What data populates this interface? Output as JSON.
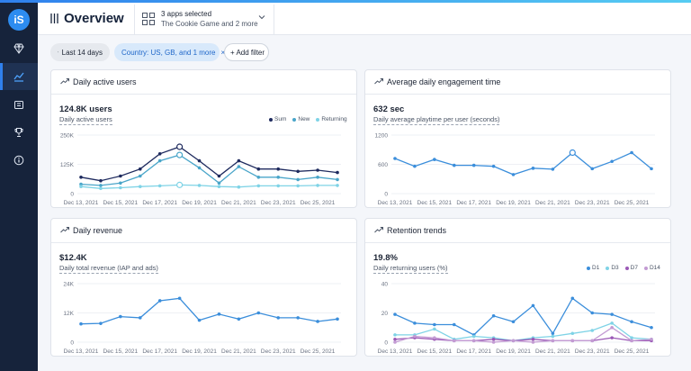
{
  "app": {
    "logo_text": "iS",
    "title": "Overview",
    "app_selector": {
      "line1": "3 apps selected",
      "line2": "The Cookie Game and 2 more"
    },
    "sidebar": [
      {
        "icon": "diamond-icon"
      },
      {
        "icon": "analytics-icon",
        "active": true
      },
      {
        "icon": "calendar-icon"
      },
      {
        "icon": "trophy-icon"
      },
      {
        "icon": "info-icon"
      }
    ]
  },
  "filters": {
    "date": "Last 14 days",
    "country": "Country: US, GB, and 1 more",
    "add": "+ Add filter"
  },
  "cards": [
    {
      "title": "Daily active users",
      "value": "124.8K users",
      "subtitle": "Daily active users",
      "chart_data": {
        "type": "line",
        "x": [
          "Dec 13, 2021",
          "Dec 14, 2021",
          "Dec 15, 2021",
          "Dec 16, 2021",
          "Dec 17, 2021",
          "Dec 18, 2021",
          "Dec 19, 2021",
          "Dec 20, 2021",
          "Dec 21, 2021",
          "Dec 22, 2021",
          "Dec 23, 2021",
          "Dec 24, 2021",
          "Dec 25, 2021",
          "Dec 26, 2021"
        ],
        "xticks": [
          "Dec 13, 2021",
          "Dec 15, 2021",
          "Dec 17, 2021",
          "Dec 19, 2021",
          "Dec 21, 2021",
          "Dec 23, 2021",
          "Dec 25, 2021"
        ],
        "yticks": [
          "0",
          "125K",
          "250K"
        ],
        "ylim": [
          0,
          250000
        ],
        "legend_position": "top-right",
        "series": [
          {
            "name": "Sum",
            "color": "#1e2a5e",
            "values": [
              70000,
              55000,
              75000,
              105000,
              170000,
              200000,
              140000,
              75000,
              140000,
              105000,
              105000,
              95000,
              100000,
              90000
            ],
            "highlight": 5
          },
          {
            "name": "New",
            "color": "#49a5c9",
            "values": [
              40000,
              35000,
              45000,
              75000,
              140000,
              165000,
              110000,
              45000,
              115000,
              70000,
              70000,
              60000,
              70000,
              60000
            ],
            "highlight": 5
          },
          {
            "name": "Returning",
            "color": "#7fd3e6",
            "values": [
              30000,
              22000,
              25000,
              30000,
              33000,
              37000,
              35000,
              30000,
              28000,
              33000,
              33000,
              33000,
              35000,
              35000
            ],
            "highlight": 5
          }
        ]
      }
    },
    {
      "title": "Average daily engagement time",
      "value": "632 sec",
      "subtitle": "Daily average playtime per user (seconds)",
      "chart_data": {
        "type": "line",
        "x": [
          "Dec 13, 2021",
          "Dec 14, 2021",
          "Dec 15, 2021",
          "Dec 16, 2021",
          "Dec 17, 2021",
          "Dec 18, 2021",
          "Dec 19, 2021",
          "Dec 20, 2021",
          "Dec 21, 2021",
          "Dec 22, 2021",
          "Dec 23, 2021",
          "Dec 24, 2021",
          "Dec 25, 2021",
          "Dec 26, 2021"
        ],
        "xticks": [
          "Dec 13, 2021",
          "Dec 15, 2021",
          "Dec 17, 2021",
          "Dec 19, 2021",
          "Dec 21, 2021",
          "Dec 23, 2021",
          "Dec 25, 2021"
        ],
        "yticks": [
          "0",
          "600",
          "1200"
        ],
        "ylim": [
          0,
          1200
        ],
        "series": [
          {
            "name": "",
            "color": "#3b8edb",
            "values": [
              720,
              560,
              700,
              580,
              580,
              560,
              390,
              520,
              500,
              840,
              510,
              660,
              840,
              510
            ],
            "highlight": 9
          }
        ]
      }
    },
    {
      "title": "Daily revenue",
      "value": "$12.4K",
      "subtitle": "Daily total revenue (IAP and ads)",
      "chart_data": {
        "type": "line",
        "x": [
          "Dec 13, 2021",
          "Dec 14, 2021",
          "Dec 15, 2021",
          "Dec 16, 2021",
          "Dec 17, 2021",
          "Dec 18, 2021",
          "Dec 19, 2021",
          "Dec 20, 2021",
          "Dec 21, 2021",
          "Dec 22, 2021",
          "Dec 23, 2021",
          "Dec 24, 2021",
          "Dec 25, 2021",
          "Dec 26, 2021"
        ],
        "xticks": [
          "Dec 13, 2021",
          "Dec 15, 2021",
          "Dec 17, 2021",
          "Dec 19, 2021",
          "Dec 21, 2021",
          "Dec 23, 2021",
          "Dec 25, 2021"
        ],
        "yticks": [
          "0",
          "12K",
          "24K"
        ],
        "ylim": [
          0,
          24000
        ],
        "series": [
          {
            "name": "",
            "color": "#3b8edb",
            "values": [
              7500,
              7700,
              10500,
              10000,
              17000,
              18000,
              9000,
              11500,
              9500,
              12000,
              10000,
              10000,
              8500,
              9500
            ]
          }
        ]
      }
    },
    {
      "title": "Retention trends",
      "value": "19.8%",
      "subtitle": "Daily returning users (%)",
      "chart_data": {
        "type": "line",
        "x": [
          "Dec 13, 2021",
          "Dec 14, 2021",
          "Dec 15, 2021",
          "Dec 16, 2021",
          "Dec 17, 2021",
          "Dec 18, 2021",
          "Dec 19, 2021",
          "Dec 20, 2021",
          "Dec 21, 2021",
          "Dec 22, 2021",
          "Dec 23, 2021",
          "Dec 24, 2021",
          "Dec 25, 2021",
          "Dec 26, 2021"
        ],
        "xticks": [
          "Dec 13, 2021",
          "Dec 15, 2021",
          "Dec 17, 2021",
          "Dec 19, 2021",
          "Dec 21, 2021",
          "Dec 23, 2021",
          "Dec 25, 2021"
        ],
        "yticks": [
          "0",
          "20",
          "40"
        ],
        "ylim": [
          0,
          40
        ],
        "legend_position": "top-right",
        "series": [
          {
            "name": "D1",
            "color": "#3b8edb",
            "values": [
              19,
              13,
              12,
              12,
              5,
              18,
              14,
              25,
              6,
              30,
              20,
              19,
              14,
              10
            ]
          },
          {
            "name": "D3",
            "color": "#7fd3e6",
            "values": [
              5,
              5,
              9,
              2,
              4,
              3,
              1,
              3,
              4,
              6,
              8,
              13,
              3,
              2
            ]
          },
          {
            "name": "D7",
            "color": "#9b59b6",
            "values": [
              2,
              3,
              2,
              1,
              1,
              2,
              1,
              2,
              1,
              1,
              1,
              3,
              1,
              1
            ]
          },
          {
            "name": "D14",
            "color": "#c39bd3",
            "values": [
              0,
              4,
              3,
              1,
              1,
              0,
              1,
              0,
              1,
              1,
              1,
              10,
              1,
              2
            ]
          }
        ]
      }
    }
  ]
}
